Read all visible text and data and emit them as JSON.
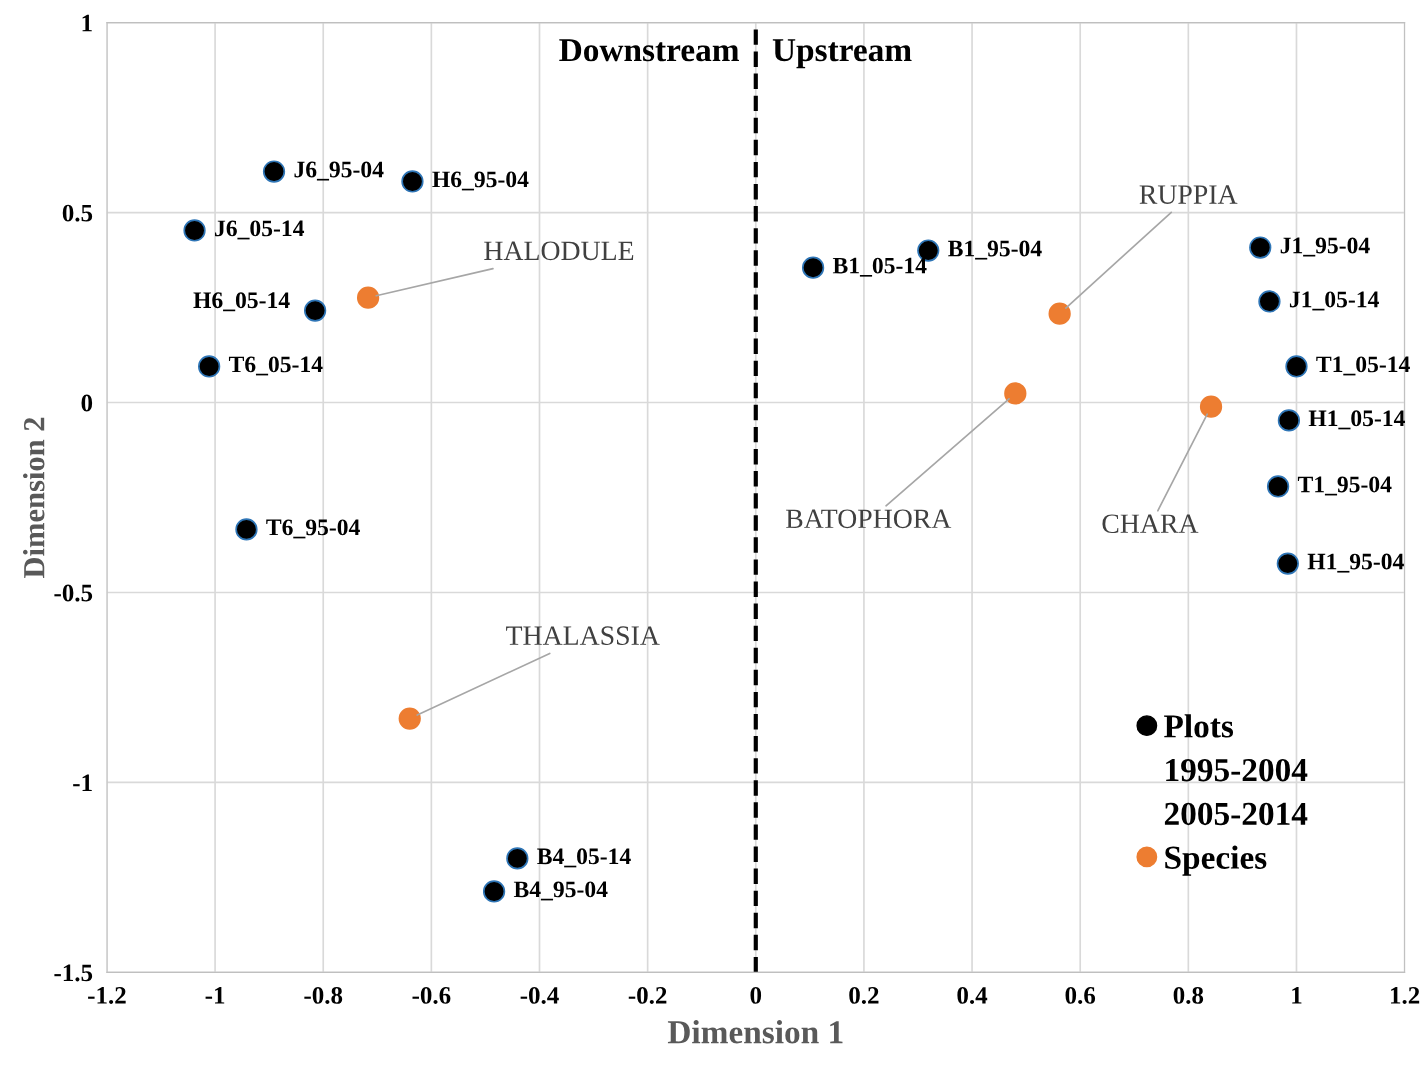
{
  "chart_data": {
    "type": "scatter",
    "xlabel": "Dimension 1",
    "ylabel": "Dimension 2",
    "xlim": [
      -1.2,
      1.2
    ],
    "xticks": [
      -1.2,
      -1,
      -0.8,
      -0.6,
      -0.4,
      -0.2,
      0,
      0.2,
      0.4,
      0.6,
      0.8,
      1,
      1.2
    ],
    "ylim": [
      -1.5,
      1
    ],
    "yticks": [
      -1.5,
      -1,
      -0.5,
      0,
      0.5,
      1
    ],
    "grid": true,
    "legend": "bottom right",
    "marker": "circle",
    "ref_lines": [
      {
        "axis": "x",
        "value": 0,
        "color": "#000000",
        "line_style": "dashed"
      }
    ],
    "series": [
      {
        "name": "Plots",
        "color": "#000000",
        "x": [
          -0.891,
          -0.635,
          -1.038,
          -0.815,
          -1.011,
          -0.942,
          -0.441,
          -0.484,
          0.106,
          0.319,
          0.933,
          0.95,
          1.0,
          0.986,
          0.966,
          0.984
        ],
        "values": [
          0.608,
          0.582,
          0.453,
          0.242,
          0.095,
          -0.334,
          -1.2,
          -1.287,
          0.355,
          0.4,
          0.408,
          0.266,
          0.095,
          -0.047,
          -0.221,
          -0.424
        ]
      },
      {
        "name": "1995-2004",
        "color": "#000000",
        "marker": "none"
      },
      {
        "name": "2005-2014",
        "color": "#000000",
        "marker": "none"
      },
      {
        "name": "Species",
        "color": "#ed7d31",
        "x": [
          -0.717,
          -0.64,
          0.562,
          0.48,
          0.842
        ],
        "values": [
          0.276,
          -0.832,
          0.234,
          0.024,
          -0.011
        ]
      }
    ],
    "annotations": [
      "Downstream",
      "Upstream",
      {
        "text": "J6_95-04",
        "x": -0.891,
        "y": 0.608
      },
      {
        "text": "H6_95-04",
        "x": -0.635,
        "y": 0.582
      },
      {
        "text": "J6_05-14",
        "x": -1.038,
        "y": 0.453
      },
      {
        "text": "H6_05-14",
        "x": -0.815,
        "y": 0.242
      },
      {
        "text": "T6_05-14",
        "x": -1.011,
        "y": 0.095
      },
      {
        "text": "T6_95-04",
        "x": -0.942,
        "y": -0.334
      },
      {
        "text": "B4_05-14",
        "x": -0.441,
        "y": -1.2
      },
      {
        "text": "B4_95-04",
        "x": -0.484,
        "y": -1.287
      },
      {
        "text": "B1_05-14",
        "x": 0.106,
        "y": 0.355
      },
      {
        "text": "B1_95-04",
        "x": 0.319,
        "y": 0.4
      },
      {
        "text": "J1_95-04",
        "x": 0.933,
        "y": 0.408
      },
      {
        "text": "J1_05-14",
        "x": 0.95,
        "y": 0.266
      },
      {
        "text": "T1_05-14",
        "x": 1.0,
        "y": 0.095
      },
      {
        "text": "H1_05-14",
        "x": 0.986,
        "y": -0.047
      },
      {
        "text": "T1_95-04",
        "x": 0.966,
        "y": -0.221
      },
      {
        "text": "H1_95-04",
        "x": 0.984,
        "y": -0.424
      },
      {
        "text": "HALODULE",
        "x": -0.717,
        "y": 0.276
      },
      {
        "text": "THALASSIA",
        "x": -0.64,
        "y": -0.832
      },
      {
        "text": "RUPPIA",
        "x": 0.562,
        "y": 0.234
      },
      {
        "text": "BATOPHORA",
        "x": 0.48,
        "y": 0.024
      },
      {
        "text": "CHARA",
        "x": 0.842,
        "y": -0.011
      }
    ]
  }
}
